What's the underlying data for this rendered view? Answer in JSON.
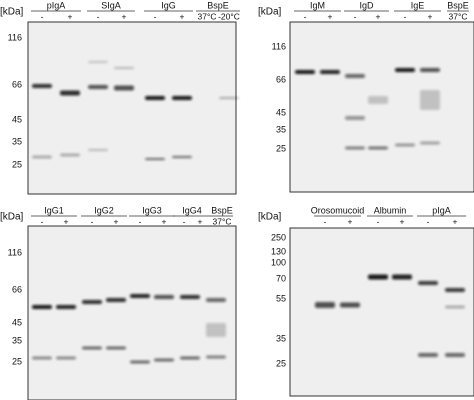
{
  "panels": [
    {
      "kda_label": "[kDa]",
      "markers": [
        116,
        66,
        45,
        35,
        25
      ],
      "groups": [
        {
          "name": "pIgA",
          "lanes": [
            "-",
            "+"
          ]
        },
        {
          "name": "SIgA",
          "lanes": [
            "-",
            "+"
          ]
        },
        {
          "name": "IgG",
          "lanes": [
            "-",
            "+"
          ]
        },
        {
          "name": "BspE",
          "lanes": [
            "37°C",
            "-20°C"
          ]
        }
      ]
    },
    {
      "kda_label": "[kDa]",
      "markers": [
        116,
        66,
        45,
        35,
        25
      ],
      "groups": [
        {
          "name": "IgM",
          "lanes": [
            "-",
            "+"
          ]
        },
        {
          "name": "IgD",
          "lanes": [
            "-",
            "+"
          ]
        },
        {
          "name": "IgE",
          "lanes": [
            "-",
            "+"
          ]
        },
        {
          "name": "BspE",
          "lanes": [
            "37°C"
          ]
        }
      ]
    },
    {
      "kda_label": "[kDa]",
      "markers": [
        116,
        66,
        45,
        35,
        25
      ],
      "groups": [
        {
          "name": "IgG1",
          "lanes": [
            "-",
            "+"
          ]
        },
        {
          "name": "IgG2",
          "lanes": [
            "-",
            "+"
          ]
        },
        {
          "name": "IgG3",
          "lanes": [
            "-",
            "+"
          ]
        },
        {
          "name": "IgG4",
          "lanes": [
            "-",
            "+"
          ]
        },
        {
          "name": "BspE",
          "lanes": [
            "37°C"
          ]
        }
      ]
    },
    {
      "kda_label": "[kDa]",
      "markers": [
        250,
        130,
        100,
        70,
        55,
        35,
        25
      ],
      "groups": [
        {
          "name": "Orosomucoid",
          "lanes": [
            "-",
            "+"
          ]
        },
        {
          "name": "Albumin",
          "lanes": [
            "-",
            "+"
          ]
        },
        {
          "name": "pIgA",
          "lanes": [
            "-",
            "+"
          ]
        }
      ]
    }
  ]
}
